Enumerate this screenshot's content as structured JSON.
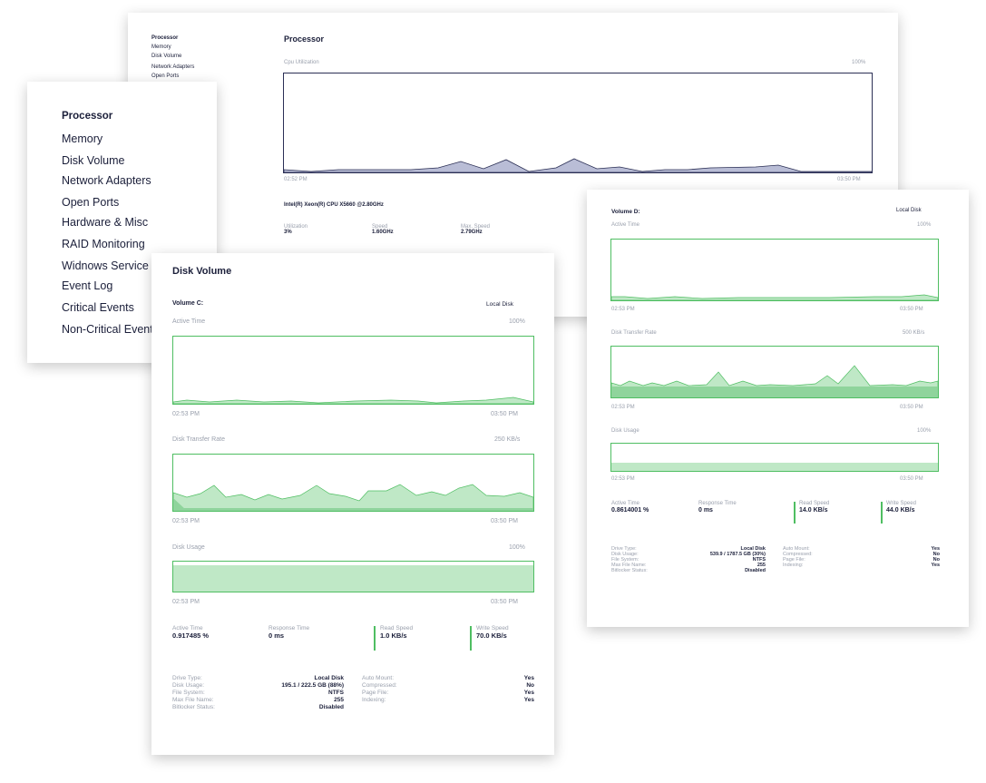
{
  "processor_panel": {
    "mini_menu": [
      "Processor",
      "Memory",
      "Disk Volume",
      "Network Adapters",
      "Open Ports"
    ],
    "title": "Processor",
    "chart_label": "Cpu Utilization",
    "chart_max": "100%",
    "time_start": "02:52 PM",
    "time_end": "03:50 PM",
    "cpu_name": "Intel(R) Xeon(R) CPU X5660 @2.80GHz",
    "stats": [
      {
        "label": "Utilization",
        "value": "3%"
      },
      {
        "label": "Speed",
        "value": "1.60GHz"
      },
      {
        "label": "Max. Speed",
        "value": "2.79GHz"
      }
    ],
    "colors": {
      "fill": "#b9bdd6",
      "stroke": "#2b2f55"
    }
  },
  "nav_menu": {
    "items": [
      "Processor",
      "Memory",
      "Disk Volume",
      "Network Adapters",
      "Open Ports",
      "Hardware & Misc",
      "RAID Monitoring",
      "Widnows Service",
      "Event Log",
      "Critical Events",
      "Non-Critical Events"
    ],
    "active": "Processor"
  },
  "disk_c": {
    "title": "Disk Volume",
    "volume": "Volume C:",
    "volume_type": "Local Disk",
    "active_time": {
      "label": "Active Time",
      "max": "100%",
      "start": "02:53 PM",
      "end": "03:50 PM"
    },
    "transfer_rate": {
      "label": "Disk Transfer Rate",
      "max": "250 KB/s",
      "start": "02:53 PM",
      "end": "03:50 PM"
    },
    "disk_usage": {
      "label": "Disk Usage",
      "max": "100%",
      "start": "02:53 PM",
      "end": "03:50 PM",
      "fraction": 0.88
    },
    "stats": [
      {
        "label": "Active Time",
        "value": "0.917485 %"
      },
      {
        "label": "Response Time",
        "value": "0 ms"
      },
      {
        "label": "Read Speed",
        "value": "1.0 KB/s"
      },
      {
        "label": "Write Speed",
        "value": "70.0 KB/s"
      }
    ],
    "details_left": [
      {
        "k": "Drive Type:",
        "v": "Local Disk"
      },
      {
        "k": "Disk Usage:",
        "v": "195.1 / 222.5 GB (88%)"
      },
      {
        "k": "File System:",
        "v": "NTFS"
      },
      {
        "k": "Max File Name:",
        "v": "255"
      },
      {
        "k": "Bitlocker Status:",
        "v": "Disabled"
      }
    ],
    "details_right": [
      {
        "k": "Auto Mount:",
        "v": "Yes"
      },
      {
        "k": "Compressed:",
        "v": "No"
      },
      {
        "k": "Page File:",
        "v": "Yes"
      },
      {
        "k": "Indexing:",
        "v": "Yes"
      }
    ]
  },
  "disk_d": {
    "volume": "Volume D:",
    "volume_type": "Local Disk",
    "active_time": {
      "label": "Active Time",
      "max": "100%",
      "start": "02:53 PM",
      "end": "03:50 PM"
    },
    "transfer_rate": {
      "label": "Disk Transfer Rate",
      "max": "500 KB/s",
      "start": "02:53 PM",
      "end": "03:50 PM"
    },
    "disk_usage": {
      "label": "Disk Usage",
      "max": "100%",
      "start": "02:53 PM",
      "end": "03:50 PM",
      "fraction": 0.3
    },
    "stats": [
      {
        "label": "Active Time",
        "value": "0.8614001 %"
      },
      {
        "label": "Response Time",
        "value": "0 ms"
      },
      {
        "label": "Read Speed",
        "value": "14.0 KB/s"
      },
      {
        "label": "Write Speed",
        "value": "44.0 KB/s"
      }
    ],
    "details_left": [
      {
        "k": "Drive Type:",
        "v": "Local Disk"
      },
      {
        "k": "Disk Usage:",
        "v": "539.9 / 1787.5 GB (30%)"
      },
      {
        "k": "File System:",
        "v": "NTFS"
      },
      {
        "k": "Max File Name:",
        "v": "255"
      },
      {
        "k": "Bitlocker Status:",
        "v": "Disabled"
      }
    ],
    "details_right": [
      {
        "k": "Auto Mount:",
        "v": "Yes"
      },
      {
        "k": "Compressed:",
        "v": "No"
      },
      {
        "k": "Page File:",
        "v": "No"
      },
      {
        "k": "Indexing:",
        "v": "Yes"
      }
    ]
  },
  "colors": {
    "green_fill": "#bfe8c6",
    "green_stroke": "#4fbe62",
    "green_dark": "#8fd49c",
    "navy": "#1b1f3a"
  }
}
